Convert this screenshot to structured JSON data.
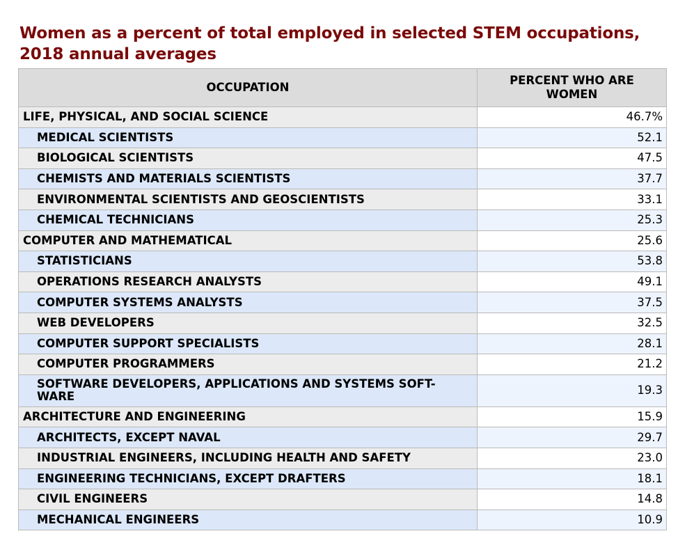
{
  "title": "Women as a percent of total employed in selected STEM occupations, 2018 annual averages",
  "chart_data": {
    "type": "table",
    "title": "Women as a percent of total employed in selected STEM occupations, 2018 annual averages",
    "columns": [
      "OCCUPATION",
      "PERCENT WHO ARE WOMEN"
    ],
    "rows": [
      {
        "occupation": "LIFE, PHYSICAL, AND SOCIAL SCIENCE",
        "value": "46.7%",
        "level": 0
      },
      {
        "occupation": "MEDICAL SCIENTISTS",
        "value": "52.1",
        "level": 1
      },
      {
        "occupation": "BIOLOGICAL SCIENTISTS",
        "value": "47.5",
        "level": 1
      },
      {
        "occupation": "CHEMISTS AND MATERIALS SCIENTISTS",
        "value": "37.7",
        "level": 1
      },
      {
        "occupation": "ENVIRONMENTAL SCIENTISTS AND GEOSCIENTISTS",
        "value": "33.1",
        "level": 1
      },
      {
        "occupation": "CHEMICAL TECHNICIANS",
        "value": "25.3",
        "level": 1
      },
      {
        "occupation": "COMPUTER AND MATHEMATICAL",
        "value": "25.6",
        "level": 0
      },
      {
        "occupation": "STATISTICIANS",
        "value": "53.8",
        "level": 1
      },
      {
        "occupation": "OPERATIONS RESEARCH ANALYSTS",
        "value": "49.1",
        "level": 1
      },
      {
        "occupation": "COMPUTER SYSTEMS ANALYSTS",
        "value": "37.5",
        "level": 1
      },
      {
        "occupation": "WEB DEVELOPERS",
        "value": "32.5",
        "level": 1
      },
      {
        "occupation": "COMPUTER SUPPORT SPECIALISTS",
        "value": "28.1",
        "level": 1
      },
      {
        "occupation": "COMPUTER PROGRAMMERS",
        "value": "21.2",
        "level": 1
      },
      {
        "occupation": "SOFTWARE DEVELOPERS, APPLICATIONS AND SYSTEMS SOFT-WARE",
        "value": "19.3",
        "level": 1
      },
      {
        "occupation": "ARCHITECTURE AND ENGINEERING",
        "value": "15.9",
        "level": 0
      },
      {
        "occupation": "ARCHITECTS, EXCEPT NAVAL",
        "value": "29.7",
        "level": 1
      },
      {
        "occupation": "INDUSTRIAL ENGINEERS, INCLUDING HEALTH AND SAFETY",
        "value": "23.0",
        "level": 1
      },
      {
        "occupation": "ENGINEERING TECHNICIANS, EXCEPT DRAFTERS",
        "value": "18.1",
        "level": 1
      },
      {
        "occupation": "CIVIL ENGINEERS",
        "value": "14.8",
        "level": 1
      },
      {
        "occupation": "MECHANICAL ENGINEERS",
        "value": "10.9",
        "level": 1
      }
    ]
  },
  "colors": {
    "title": "#7a0a0a",
    "header_bg": "#dcdcdc",
    "row_gray": "#ececec",
    "row_blue": "#dce8f9",
    "border": "#b9b9b9"
  }
}
